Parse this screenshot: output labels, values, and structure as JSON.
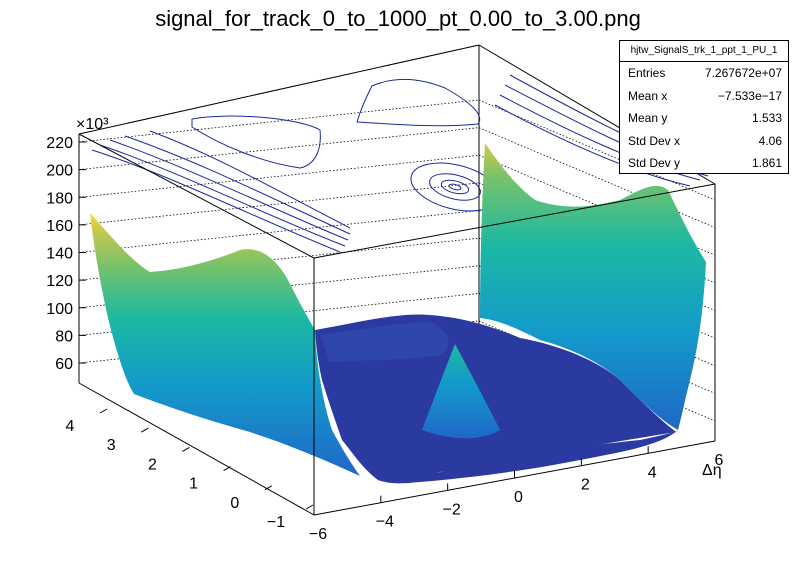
{
  "chart_data": {
    "type": "surface",
    "title": "signal_for_track_0_to_1000_pt_0.00_to_3.00.png",
    "x_axis": {
      "label": "Δη",
      "ticks": [
        "−6",
        "−4",
        "−2",
        "0",
        "2",
        "4",
        "6"
      ]
    },
    "y_axis": {
      "label": "",
      "ticks": [
        "−1",
        "0",
        "1",
        "2",
        "3",
        "4"
      ]
    },
    "z_axis": {
      "label": "",
      "multiplier": "×10³",
      "ticks": [
        "60",
        "80",
        "100",
        "120",
        "140",
        "160",
        "180",
        "200",
        "220"
      ]
    },
    "grid": true,
    "legend_placement": "top-right",
    "palette": [
      "#2b3aa0",
      "#1f67c8",
      "#139cc9",
      "#1cb9a2",
      "#78c26a",
      "#d2c84a",
      "#fbe52a"
    ]
  },
  "stats": {
    "name": "hjtw_SignalS_trk_1_ppt_1_PU_1",
    "rows": [
      {
        "label": "Entries",
        "value": "7.267672e+07"
      },
      {
        "label": "Mean x",
        "value": "−7.533e−17"
      },
      {
        "label": "Mean y",
        "value": "1.533"
      },
      {
        "label": "Std Dev x",
        "value": "4.06"
      },
      {
        "label": "Std Dev y",
        "value": "1.861"
      }
    ]
  }
}
